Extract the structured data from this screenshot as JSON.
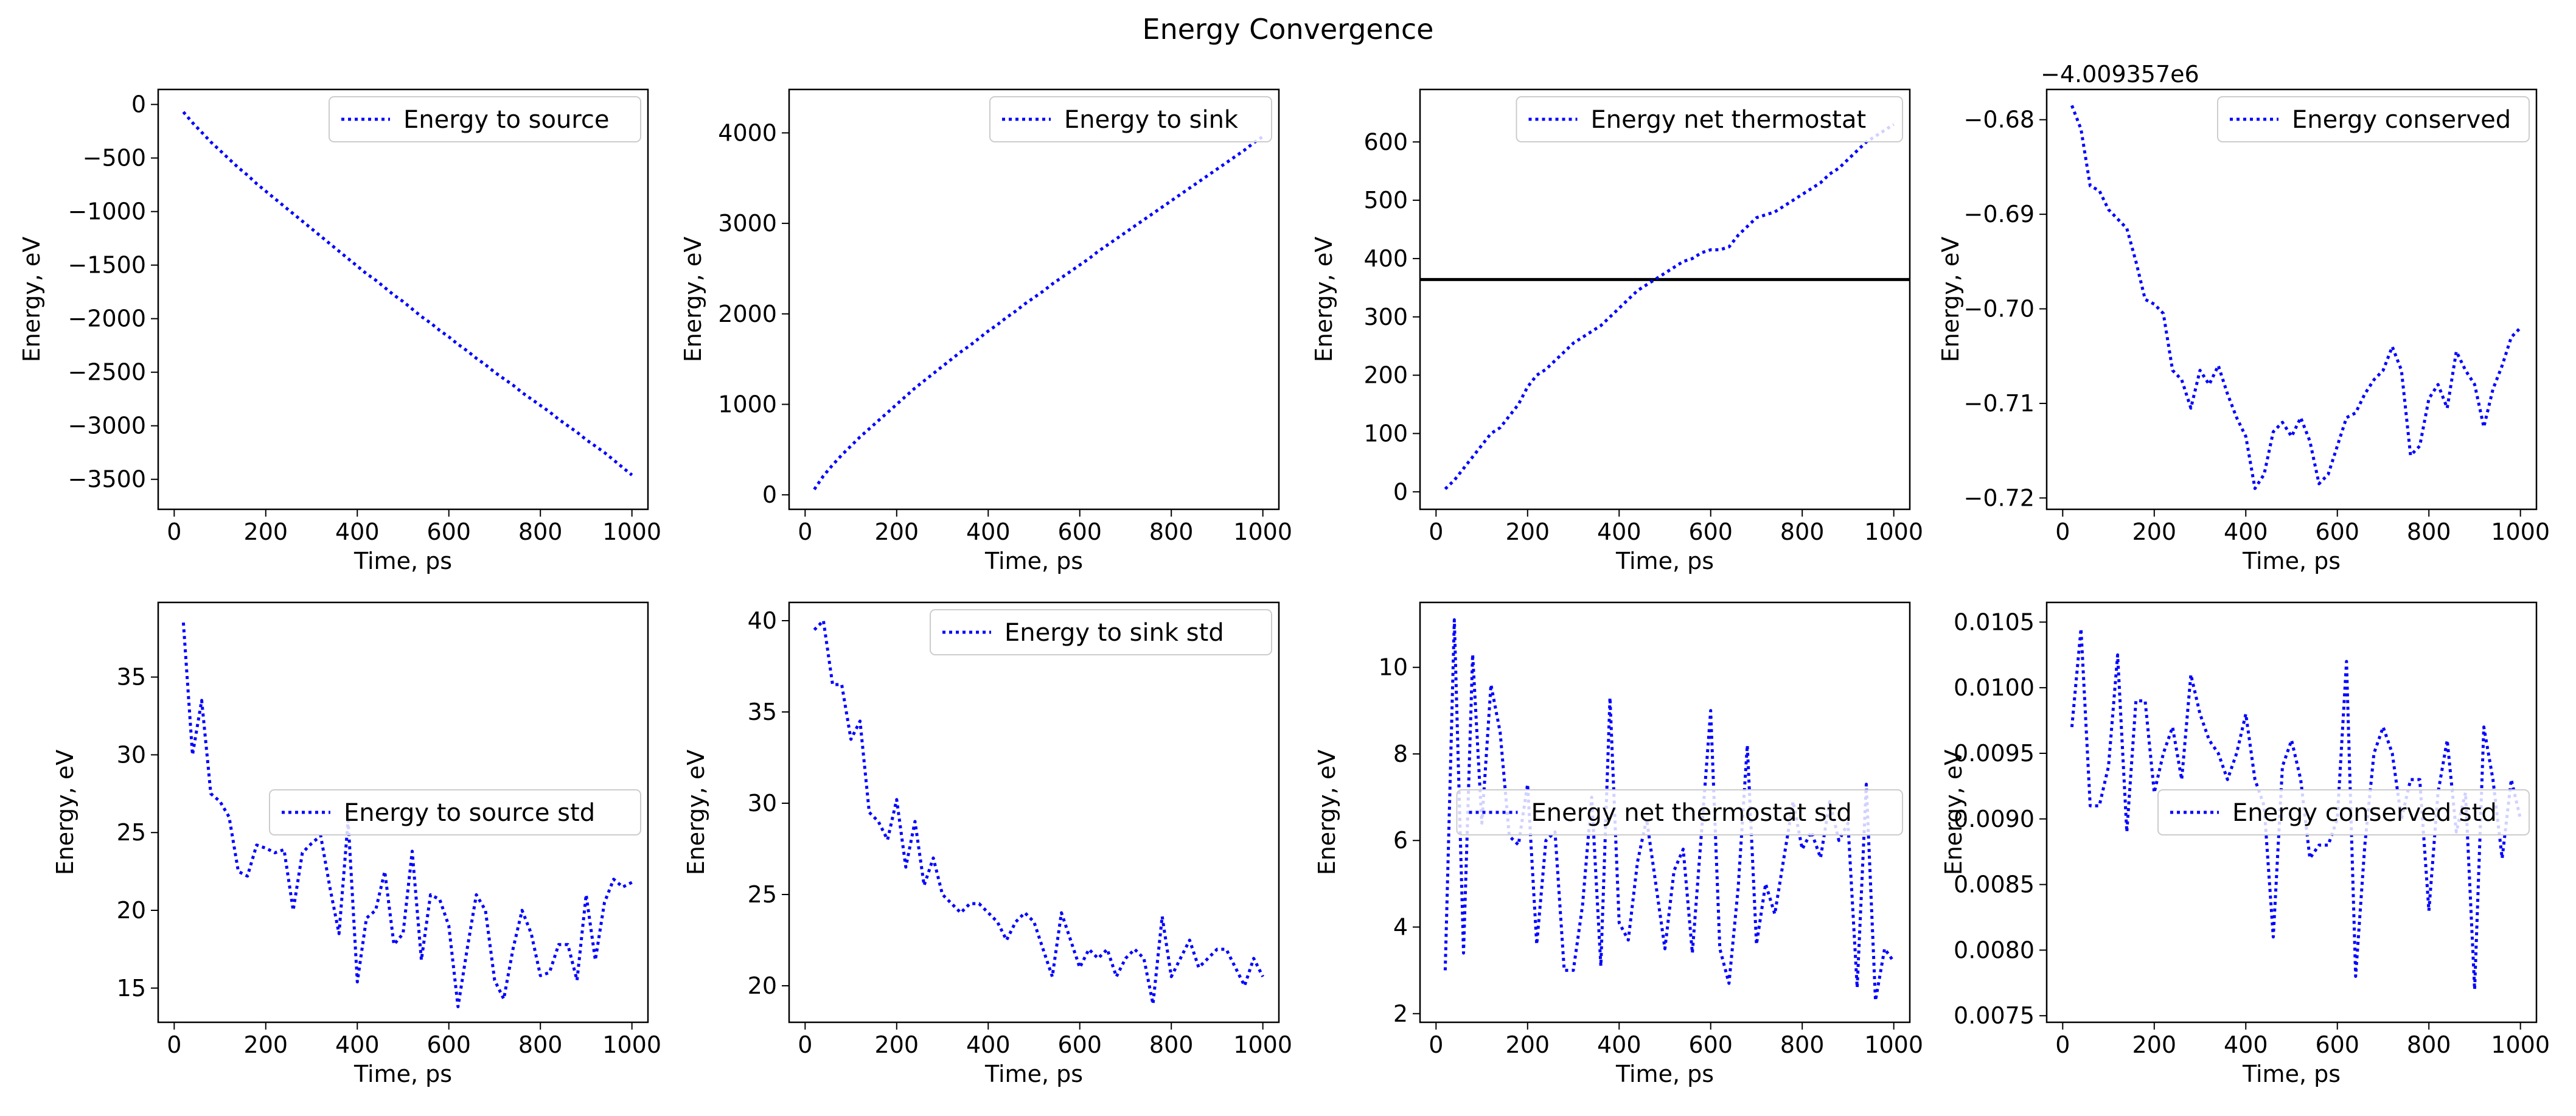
{
  "figure": {
    "title": "Energy Convergence"
  },
  "colors": {
    "series": "#0000ff",
    "reference": "#000000",
    "axes": "#000000",
    "legend_border": "#cccccc"
  },
  "chart_data": [
    {
      "type": "line",
      "legend": "Energy to source",
      "legend_loc": "upper right",
      "xlabel": "Time, ps",
      "ylabel": "Energy, eV",
      "xlim": [
        -35,
        1035
      ],
      "ylim": [
        -3780,
        140
      ],
      "xticks": [
        0,
        200,
        400,
        600,
        800,
        1000
      ],
      "xtick_labels": [
        "0",
        "200",
        "400",
        "600",
        "800",
        "1000"
      ],
      "yticks": [
        0,
        -500,
        -1000,
        -1500,
        -2000,
        -2500,
        -3000,
        -3500
      ],
      "ytick_labels": [
        "0",
        "−500",
        "−1000",
        "−1500",
        "−2000",
        "−2500",
        "−3000",
        "−3500"
      ],
      "x": [
        20,
        40,
        60,
        80,
        100,
        120,
        140,
        160,
        180,
        200,
        220,
        240,
        260,
        280,
        300,
        320,
        340,
        360,
        380,
        400,
        420,
        440,
        460,
        480,
        500,
        520,
        540,
        560,
        580,
        600,
        620,
        640,
        660,
        680,
        700,
        720,
        740,
        760,
        780,
        800,
        820,
        840,
        860,
        880,
        900,
        920,
        940,
        960,
        980,
        1000
      ],
      "y": [
        -70,
        -170,
        -260,
        -350,
        -430,
        -510,
        -590,
        -660,
        -740,
        -810,
        -880,
        -950,
        -1020,
        -1090,
        -1160,
        -1230,
        -1300,
        -1370,
        -1440,
        -1510,
        -1580,
        -1640,
        -1710,
        -1780,
        -1840,
        -1910,
        -1980,
        -2040,
        -2110,
        -2170,
        -2240,
        -2300,
        -2370,
        -2430,
        -2500,
        -2560,
        -2620,
        -2690,
        -2750,
        -2810,
        -2870,
        -2940,
        -3000,
        -3060,
        -3130,
        -3190,
        -3250,
        -3320,
        -3390,
        -3460
      ]
    },
    {
      "type": "line",
      "legend": "Energy to sink",
      "legend_loc": "upper right",
      "xlabel": "Time, ps",
      "ylabel": "Energy, eV",
      "xlim": [
        -35,
        1035
      ],
      "ylim": [
        -160,
        4480
      ],
      "xticks": [
        0,
        200,
        400,
        600,
        800,
        1000
      ],
      "xtick_labels": [
        "0",
        "200",
        "400",
        "600",
        "800",
        "1000"
      ],
      "yticks": [
        0,
        1000,
        2000,
        3000,
        4000
      ],
      "ytick_labels": [
        "0",
        "1000",
        "2000",
        "3000",
        "4000"
      ],
      "x": [
        20,
        40,
        60,
        80,
        100,
        120,
        140,
        160,
        180,
        200,
        220,
        240,
        260,
        280,
        300,
        320,
        340,
        360,
        380,
        400,
        420,
        440,
        460,
        480,
        500,
        520,
        540,
        560,
        580,
        600,
        620,
        640,
        660,
        680,
        700,
        720,
        740,
        760,
        780,
        800,
        820,
        840,
        860,
        880,
        900,
        920,
        940,
        960,
        980,
        1000
      ],
      "y": [
        60,
        210,
        330,
        440,
        540,
        640,
        730,
        820,
        910,
        1000,
        1090,
        1180,
        1260,
        1340,
        1420,
        1500,
        1580,
        1650,
        1730,
        1810,
        1880,
        1960,
        2030,
        2110,
        2180,
        2250,
        2330,
        2400,
        2470,
        2540,
        2610,
        2690,
        2760,
        2830,
        2900,
        2970,
        3040,
        3110,
        3180,
        3250,
        3320,
        3390,
        3460,
        3530,
        3600,
        3670,
        3740,
        3810,
        3890,
        3960
      ]
    },
    {
      "type": "line",
      "legend": "Energy net thermostat",
      "legend_loc": "upper right",
      "xlabel": "Time, ps",
      "ylabel": "Energy, eV",
      "xlim": [
        -35,
        1035
      ],
      "ylim": [
        -30,
        690
      ],
      "xticks": [
        0,
        200,
        400,
        600,
        800,
        1000
      ],
      "xtick_labels": [
        "0",
        "200",
        "400",
        "600",
        "800",
        "1000"
      ],
      "yticks": [
        0,
        100,
        200,
        300,
        400,
        500,
        600
      ],
      "ytick_labels": [
        "0",
        "100",
        "200",
        "300",
        "400",
        "500",
        "600"
      ],
      "reference_line": 364,
      "x": [
        20,
        40,
        60,
        80,
        100,
        120,
        140,
        160,
        180,
        200,
        220,
        240,
        260,
        280,
        300,
        320,
        340,
        360,
        380,
        400,
        420,
        440,
        460,
        480,
        500,
        520,
        540,
        560,
        580,
        600,
        620,
        640,
        660,
        680,
        700,
        720,
        740,
        760,
        780,
        800,
        820,
        840,
        860,
        880,
        900,
        920,
        940,
        960,
        980,
        1000
      ],
      "y": [
        5,
        20,
        40,
        60,
        80,
        100,
        110,
        130,
        150,
        180,
        200,
        210,
        225,
        240,
        255,
        265,
        275,
        285,
        300,
        315,
        330,
        345,
        355,
        365,
        375,
        385,
        395,
        400,
        410,
        415,
        415,
        420,
        440,
        455,
        470,
        475,
        480,
        490,
        500,
        510,
        520,
        530,
        545,
        555,
        570,
        585,
        600,
        610,
        620,
        630
      ]
    },
    {
      "type": "line",
      "legend": "Energy conserved",
      "legend_loc": "upper right",
      "offset_text": "−4.009357e6",
      "xlabel": "Time, ps",
      "ylabel": "Energy, eV",
      "xlim": [
        -35,
        1035
      ],
      "ylim": [
        -0.7212,
        -0.6768
      ],
      "xticks": [
        0,
        200,
        400,
        600,
        800,
        1000
      ],
      "xtick_labels": [
        "0",
        "200",
        "400",
        "600",
        "800",
        "1000"
      ],
      "yticks": [
        -0.68,
        -0.69,
        -0.7,
        -0.71,
        -0.72
      ],
      "ytick_labels": [
        "−0.68",
        "−0.69",
        "−0.70",
        "−0.71",
        "−0.72"
      ],
      "x": [
        20,
        40,
        60,
        80,
        100,
        120,
        140,
        160,
        180,
        200,
        220,
        240,
        260,
        280,
        300,
        320,
        340,
        360,
        380,
        400,
        420,
        440,
        460,
        480,
        500,
        520,
        540,
        560,
        580,
        600,
        620,
        640,
        660,
        680,
        700,
        720,
        740,
        760,
        780,
        800,
        820,
        840,
        860,
        880,
        900,
        920,
        940,
        960,
        980,
        1000
      ],
      "y": [
        -0.6785,
        -0.681,
        -0.687,
        -0.6875,
        -0.6895,
        -0.6905,
        -0.6915,
        -0.695,
        -0.699,
        -0.6995,
        -0.7005,
        -0.7065,
        -0.7075,
        -0.7105,
        -0.7065,
        -0.708,
        -0.706,
        -0.709,
        -0.7115,
        -0.7135,
        -0.719,
        -0.7175,
        -0.713,
        -0.712,
        -0.7135,
        -0.7115,
        -0.714,
        -0.7185,
        -0.7175,
        -0.7145,
        -0.7115,
        -0.711,
        -0.709,
        -0.7075,
        -0.7065,
        -0.704,
        -0.7065,
        -0.7155,
        -0.7145,
        -0.7095,
        -0.708,
        -0.7105,
        -0.7045,
        -0.7065,
        -0.708,
        -0.7125,
        -0.7085,
        -0.706,
        -0.703,
        -0.702
      ]
    },
    {
      "type": "line",
      "legend": "Energy to source std",
      "legend_loc": "center right",
      "xlabel": "Time, ps",
      "ylabel": "Energy, eV",
      "xlim": [
        -35,
        1035
      ],
      "ylim": [
        12.8,
        39.8
      ],
      "xticks": [
        0,
        200,
        400,
        600,
        800,
        1000
      ],
      "xtick_labels": [
        "0",
        "200",
        "400",
        "600",
        "800",
        "1000"
      ],
      "yticks": [
        15,
        20,
        25,
        30,
        35
      ],
      "ytick_labels": [
        "15",
        "20",
        "25",
        "30",
        "35"
      ],
      "x": [
        20,
        40,
        60,
        80,
        100,
        120,
        140,
        160,
        180,
        200,
        220,
        240,
        260,
        280,
        300,
        320,
        340,
        360,
        380,
        400,
        420,
        440,
        460,
        480,
        500,
        520,
        540,
        560,
        580,
        600,
        620,
        640,
        660,
        680,
        700,
        720,
        740,
        760,
        780,
        800,
        820,
        840,
        860,
        880,
        900,
        920,
        940,
        960,
        980,
        1000
      ],
      "y": [
        38.5,
        30.0,
        33.5,
        27.5,
        27.0,
        26.0,
        22.5,
        22.2,
        24.2,
        24.0,
        23.7,
        23.9,
        20.0,
        23.7,
        24.3,
        24.8,
        21.5,
        18.5,
        25.8,
        15.4,
        19.5,
        20.0,
        22.5,
        17.8,
        18.5,
        23.8,
        16.8,
        21.0,
        20.7,
        19.0,
        13.8,
        17.5,
        21.0,
        20.0,
        15.5,
        14.3,
        17.5,
        20.0,
        18.5,
        15.8,
        16.0,
        17.8,
        17.8,
        15.5,
        21.0,
        16.8,
        20.5,
        22.0,
        21.5,
        21.8
      ]
    },
    {
      "type": "line",
      "legend": "Energy to sink std",
      "legend_loc": "upper right",
      "xlabel": "Time, ps",
      "ylabel": "Energy, eV",
      "xlim": [
        -35,
        1035
      ],
      "ylim": [
        18.0,
        41.0
      ],
      "xticks": [
        0,
        200,
        400,
        600,
        800,
        1000
      ],
      "xtick_labels": [
        "0",
        "200",
        "400",
        "600",
        "800",
        "1000"
      ],
      "yticks": [
        20,
        25,
        30,
        35,
        40
      ],
      "ytick_labels": [
        "20",
        "25",
        "30",
        "35",
        "40"
      ],
      "x": [
        20,
        40,
        60,
        80,
        100,
        120,
        140,
        160,
        180,
        200,
        220,
        240,
        260,
        280,
        300,
        320,
        340,
        360,
        380,
        400,
        420,
        440,
        460,
        480,
        500,
        520,
        540,
        560,
        580,
        600,
        620,
        640,
        660,
        680,
        700,
        720,
        740,
        760,
        780,
        800,
        820,
        840,
        860,
        880,
        900,
        920,
        940,
        960,
        980,
        1000
      ],
      "y": [
        39.5,
        40.0,
        36.5,
        36.5,
        33.5,
        34.5,
        29.5,
        29.0,
        28.0,
        30.2,
        26.5,
        29.0,
        25.5,
        27.0,
        25.0,
        24.5,
        24.0,
        24.5,
        24.5,
        24.0,
        23.5,
        22.5,
        23.5,
        24.0,
        23.5,
        22.0,
        20.5,
        24.0,
        22.5,
        21.0,
        22.0,
        21.5,
        22.0,
        20.5,
        21.5,
        22.0,
        21.5,
        19.0,
        23.8,
        20.5,
        21.5,
        22.5,
        21.0,
        21.5,
        22.0,
        22.0,
        21.0,
        20.0,
        21.5,
        20.5
      ]
    },
    {
      "type": "line",
      "legend": "Energy net thermostat std",
      "legend_loc": "center right",
      "xlabel": "Time, ps",
      "ylabel": "Energy, eV",
      "xlim": [
        -35,
        1035
      ],
      "ylim": [
        1.8,
        11.5
      ],
      "xticks": [
        0,
        200,
        400,
        600,
        800,
        1000
      ],
      "xtick_labels": [
        "0",
        "200",
        "400",
        "600",
        "800",
        "1000"
      ],
      "yticks": [
        2,
        4,
        6,
        8,
        10
      ],
      "ytick_labels": [
        "2",
        "4",
        "6",
        "8",
        "10"
      ],
      "x": [
        20,
        40,
        60,
        80,
        100,
        120,
        140,
        160,
        180,
        200,
        220,
        240,
        260,
        280,
        300,
        320,
        340,
        360,
        380,
        400,
        420,
        440,
        460,
        480,
        500,
        520,
        540,
        560,
        580,
        600,
        620,
        640,
        660,
        680,
        700,
        720,
        740,
        760,
        780,
        800,
        820,
        840,
        860,
        880,
        900,
        920,
        940,
        960,
        980,
        1000
      ],
      "y": [
        3.0,
        11.1,
        3.4,
        10.3,
        6.4,
        9.6,
        8.5,
        6.1,
        5.9,
        7.3,
        3.6,
        6.0,
        6.2,
        3.0,
        3.0,
        4.5,
        7.0,
        3.1,
        9.3,
        4.1,
        3.7,
        5.5,
        6.5,
        5.0,
        3.5,
        5.3,
        5.8,
        3.4,
        6.2,
        9.0,
        3.5,
        2.7,
        4.9,
        8.2,
        3.6,
        5.0,
        4.3,
        5.6,
        6.9,
        5.8,
        6.2,
        5.6,
        6.9,
        6.0,
        6.4,
        2.6,
        7.3,
        2.3,
        3.5,
        3.2
      ]
    },
    {
      "type": "line",
      "legend": "Energy conserved std",
      "legend_loc": "center right",
      "xlabel": "Time, ps",
      "ylabel": "Energy, eV",
      "xlim": [
        -35,
        1035
      ],
      "ylim": [
        0.00745,
        0.01065
      ],
      "xticks": [
        0,
        200,
        400,
        600,
        800,
        1000
      ],
      "xtick_labels": [
        "0",
        "200",
        "400",
        "600",
        "800",
        "1000"
      ],
      "yticks": [
        0.0075,
        0.008,
        0.0085,
        0.009,
        0.0095,
        0.01,
        0.0105
      ],
      "ytick_labels": [
        "0.0075",
        "0.0080",
        "0.0085",
        "0.0090",
        "0.0095",
        "0.0100",
        "0.0105"
      ],
      "x": [
        20,
        40,
        60,
        80,
        100,
        120,
        140,
        160,
        180,
        200,
        220,
        240,
        260,
        280,
        300,
        320,
        340,
        360,
        380,
        400,
        420,
        440,
        460,
        480,
        500,
        520,
        540,
        560,
        580,
        600,
        620,
        640,
        660,
        680,
        700,
        720,
        740,
        760,
        780,
        800,
        820,
        840,
        860,
        880,
        900,
        920,
        940,
        960,
        980,
        1000
      ],
      "y": [
        0.0097,
        0.01045,
        0.0091,
        0.0091,
        0.0094,
        0.01025,
        0.0089,
        0.0099,
        0.0099,
        0.0092,
        0.0095,
        0.0097,
        0.0093,
        0.0101,
        0.0098,
        0.0096,
        0.0095,
        0.0093,
        0.0095,
        0.0098,
        0.0093,
        0.0091,
        0.0081,
        0.0094,
        0.0096,
        0.0093,
        0.0087,
        0.0088,
        0.0088,
        0.009,
        0.0102,
        0.0078,
        0.0088,
        0.0095,
        0.0097,
        0.0095,
        0.009,
        0.0093,
        0.0093,
        0.0083,
        0.0092,
        0.0096,
        0.0089,
        0.0092,
        0.0077,
        0.0097,
        0.0093,
        0.0087,
        0.0093,
        0.009
      ]
    }
  ]
}
